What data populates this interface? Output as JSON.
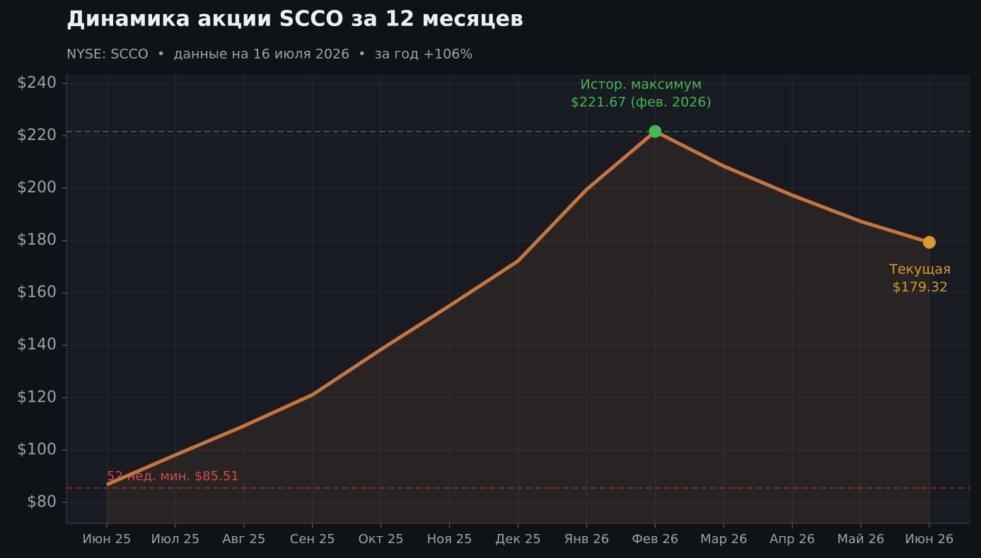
{
  "chart_data": {
    "type": "line",
    "title": "Динамика акции SCCO за 12 месяцев",
    "subtitle": "NYSE: SCCO  •  данные на 16 июля 2026  •  за год +106%",
    "categories": [
      "Июн 25",
      "Июл 25",
      "Авг 25",
      "Сен 25",
      "Окт 25",
      "Ноя 25",
      "Дек 25",
      "Янв 26",
      "Фев 26",
      "Мар 26",
      "Апр 26",
      "Май 26",
      "Июн 26"
    ],
    "values": [
      86.8,
      98.1,
      109.2,
      121.1,
      138.4,
      155.1,
      172.2,
      199.5,
      221.67,
      208.4,
      197.3,
      187.3,
      179.32
    ],
    "color": "#c8743a",
    "ylim": [
      72,
      243.5
    ],
    "yticks": [
      {
        "value": 80,
        "label": "$80"
      },
      {
        "value": 100,
        "label": "$100"
      },
      {
        "value": 120,
        "label": "$120"
      },
      {
        "value": 140,
        "label": "$140"
      },
      {
        "value": 160,
        "label": "$160"
      },
      {
        "value": 180,
        "label": "$180"
      },
      {
        "value": 200,
        "label": "$200"
      },
      {
        "value": 220,
        "label": "$220"
      },
      {
        "value": 240,
        "label": "$240"
      }
    ],
    "grid": true,
    "max_line": {
      "value": 221.67,
      "color": "#3fb950"
    },
    "min_line": {
      "value": 85.51,
      "label": "52 нед. мин. $85.51",
      "color": "#d64545"
    },
    "max_annotation": {
      "lines": [
        "Истор. максимум",
        "$221.67 (фев. 2026)"
      ],
      "color": "#3fb950"
    },
    "current_annotation": {
      "lines": [
        "Текущая",
        "$179.32"
      ],
      "color": "#d99a2b"
    }
  }
}
